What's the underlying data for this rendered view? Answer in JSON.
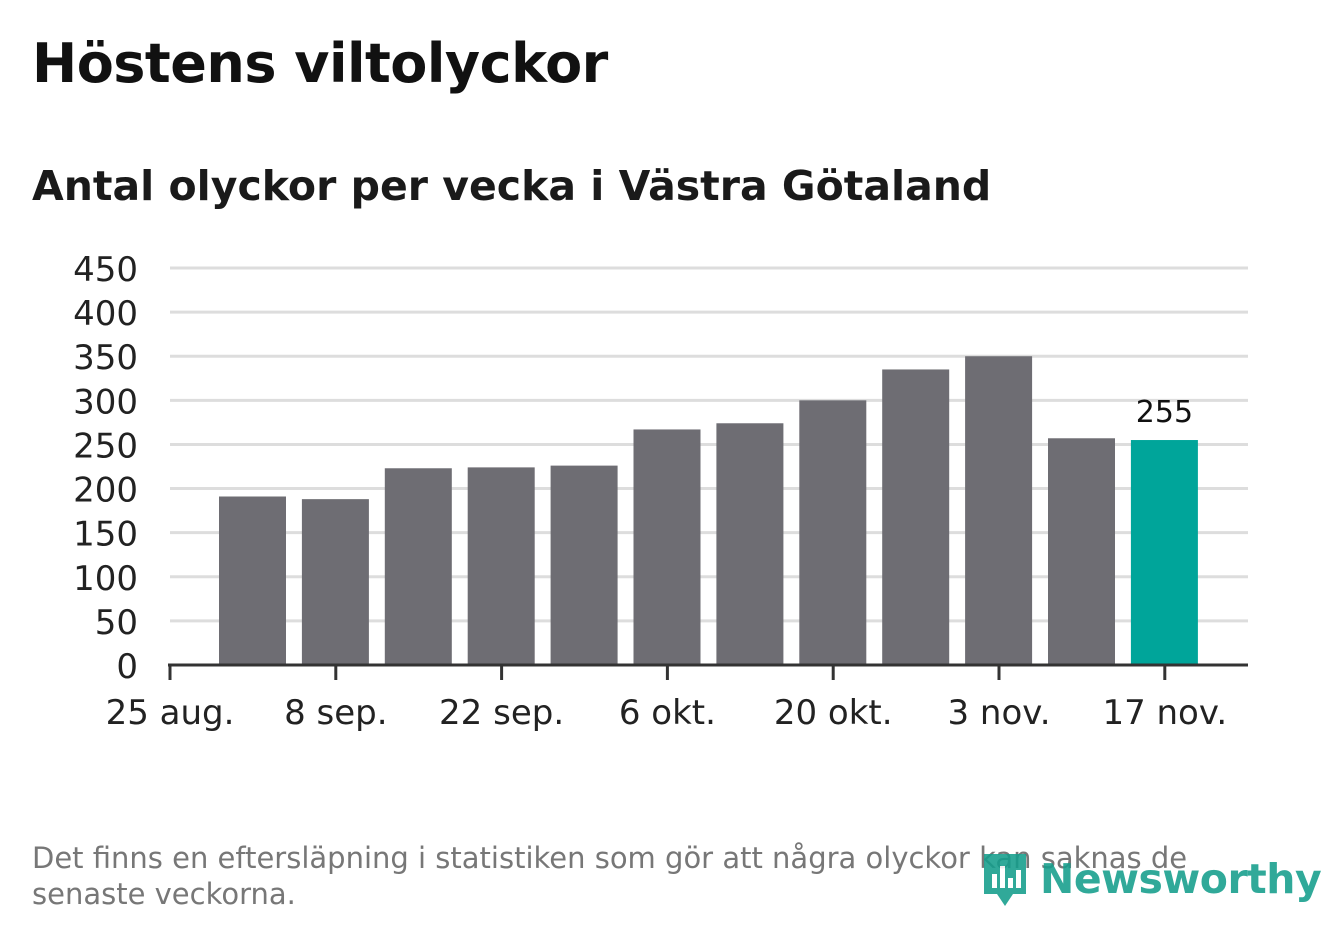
{
  "title": "Höstens viltolyckor",
  "subtitle": "Antal olyckor per vecka i Västra Götaland",
  "footnote": "Det finns en eftersläpning i statistiken som gör att några olyckor kan saknas de senaste veckorna.",
  "logo": {
    "text": "Newsworthy",
    "icon": "newsworthy-logo-icon",
    "color": "#149E8C"
  },
  "chart_data": {
    "type": "bar",
    "x_labels": [
      "25 aug.",
      "8 sep.",
      "22 sep.",
      "6 okt.",
      "20 okt.",
      "3 nov.",
      "17 nov."
    ],
    "values": [
      191,
      188,
      223,
      224,
      226,
      267,
      274,
      300,
      335,
      350,
      257,
      255
    ],
    "highlight_index": 11,
    "highlight_label": "255",
    "ylim": [
      0,
      450
    ],
    "yticks": [
      "0",
      "50",
      "100",
      "150",
      "200",
      "250",
      "300",
      "350",
      "400",
      "450"
    ],
    "grid": true,
    "colors": {
      "bar": "#6e6d73",
      "highlight": "#00A59A",
      "grid": "#dddddd",
      "axis": "#333333"
    }
  }
}
